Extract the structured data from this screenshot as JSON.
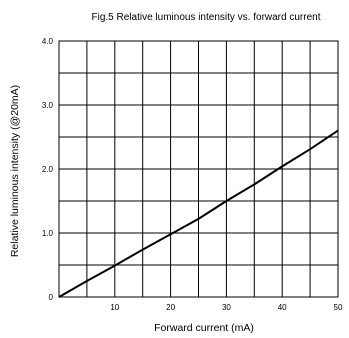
{
  "chart_data": {
    "type": "line",
    "title": "Fig.5 Relative luminous intensity vs. forward current",
    "xlabel": "Forward current (mA)",
    "ylabel": "Relative luminous intensity (@20mA)",
    "xlim": [
      0,
      50
    ],
    "ylim": [
      0,
      4.0
    ],
    "x_ticks": [
      10,
      20,
      30,
      40,
      50
    ],
    "y_ticks": [
      0,
      1.0,
      2.0,
      3.0,
      4.0
    ],
    "y_tick_labels": [
      "0",
      "1.0",
      "2.0",
      "3.0",
      "4.0"
    ],
    "grid": true,
    "legend": "none",
    "series": [
      {
        "x": [
          0,
          5,
          10,
          15,
          20,
          25,
          30,
          35,
          40,
          45,
          50
        ],
        "y": [
          0,
          0.25,
          0.49,
          0.74,
          0.98,
          1.22,
          1.5,
          1.76,
          2.04,
          2.31,
          2.6
        ]
      }
    ],
    "colors": {
      "line": "#000000",
      "grid": "#000000",
      "background": "#ffffff"
    }
  }
}
